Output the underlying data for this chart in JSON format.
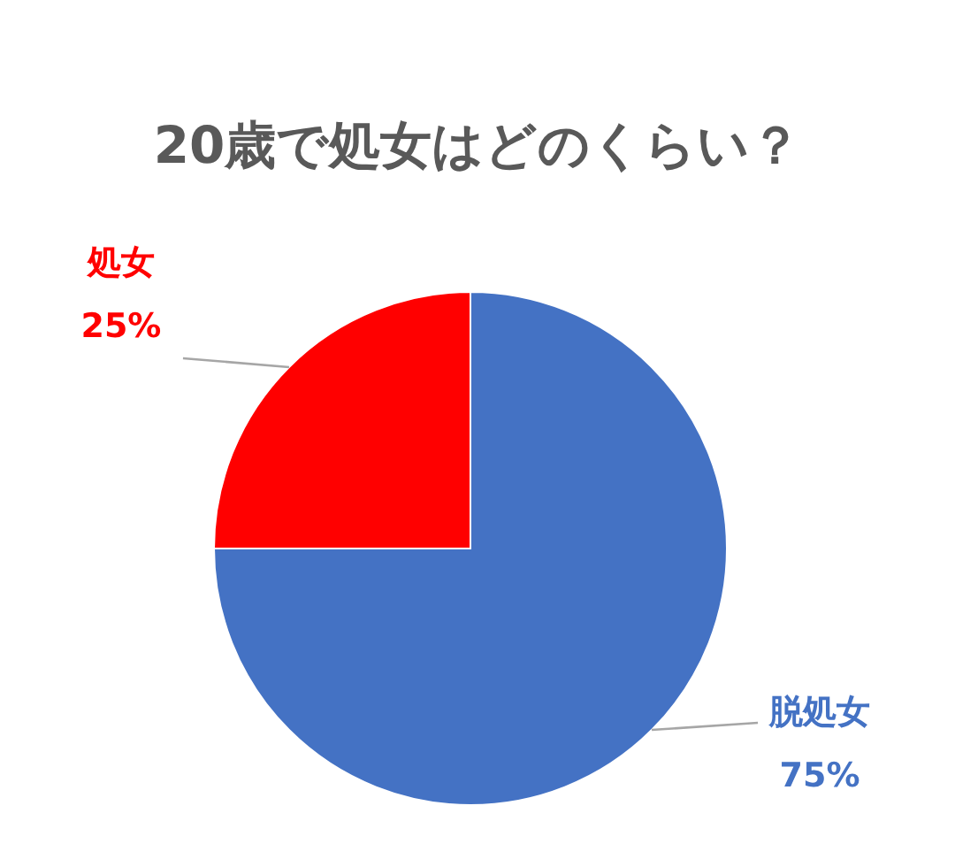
{
  "chart_data": {
    "type": "pie",
    "title": "20歳で処女はどのくらい？",
    "categories": [
      "脱処女",
      "処女"
    ],
    "values": [
      75,
      25
    ],
    "colors": [
      "#4472c4",
      "#ff0000"
    ],
    "value_labels": [
      "75%",
      "25%"
    ]
  }
}
